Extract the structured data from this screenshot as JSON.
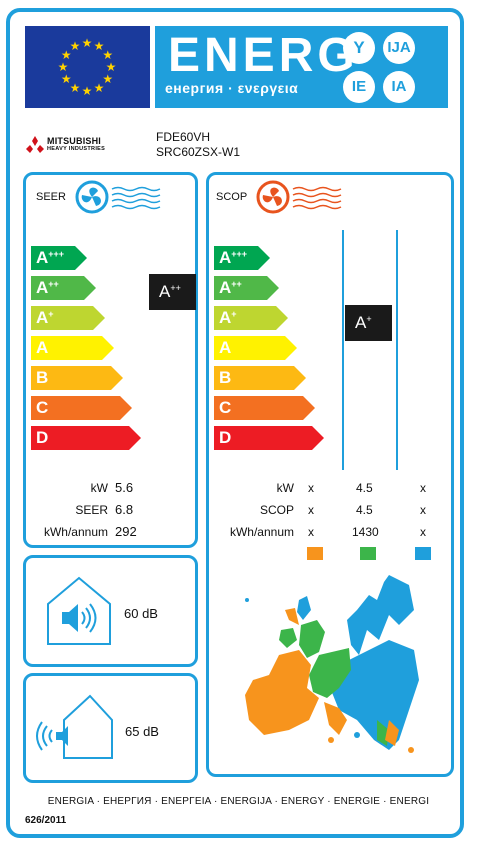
{
  "header": {
    "energy_word": "ENERG",
    "energy_sub": "енергия · ενεργεια",
    "lang_codes": [
      "Y",
      "IJA",
      "IE",
      "IA"
    ]
  },
  "brand": {
    "name": "MITSUBISHI",
    "sub": "HEAVY INDUSTRIES",
    "logo_color": "#d0121b"
  },
  "models": {
    "indoor": "FDE60VH",
    "outdoor": "SRC60ZSX-W1"
  },
  "cooling": {
    "title": "SEER",
    "rating": "A",
    "rating_sup": "++",
    "classes": [
      {
        "letter": "A",
        "sup": "+++",
        "color": "#00a651"
      },
      {
        "letter": "A",
        "sup": "++",
        "color": "#50b848"
      },
      {
        "letter": "A",
        "sup": "+",
        "color": "#bed630"
      },
      {
        "letter": "A",
        "sup": "",
        "color": "#fff200"
      },
      {
        "letter": "B",
        "sup": "",
        "color": "#fdb913"
      },
      {
        "letter": "C",
        "sup": "",
        "color": "#f37021"
      },
      {
        "letter": "D",
        "sup": "",
        "color": "#ed1c24"
      }
    ],
    "rows": [
      {
        "label": "kW",
        "value": "5.6"
      },
      {
        "label": "SEER",
        "value": "6.8"
      },
      {
        "label": "kWh/annum",
        "value": "292"
      }
    ]
  },
  "heating": {
    "title": "SCOP",
    "rating": "A",
    "rating_sup": "+",
    "rows": [
      {
        "label": "kW",
        "values": [
          "x",
          "4.5",
          "x"
        ]
      },
      {
        "label": "SCOP",
        "values": [
          "x",
          "4.5",
          "x"
        ]
      },
      {
        "label": "kWh/annum",
        "values": [
          "x",
          "1430",
          "x"
        ]
      }
    ],
    "zone_colors": [
      "#f7941d",
      "#3cb54a",
      "#1f9fdc"
    ]
  },
  "noise": {
    "indoor": "60 dB",
    "outdoor": "65 dB"
  },
  "footer": {
    "languages": "ENERGIA · ЕНЕРГИЯ · ΕΝΕΡΓΕΙΑ · ENERGIJA · ENERGY · ENERGIE · ENERGI",
    "regulation": "626/2011"
  },
  "colors": {
    "accent": "#1f9fdc",
    "eu_blue": "#1a3a9c",
    "eu_star": "#ffd200",
    "marker": "#1a1a1a"
  }
}
